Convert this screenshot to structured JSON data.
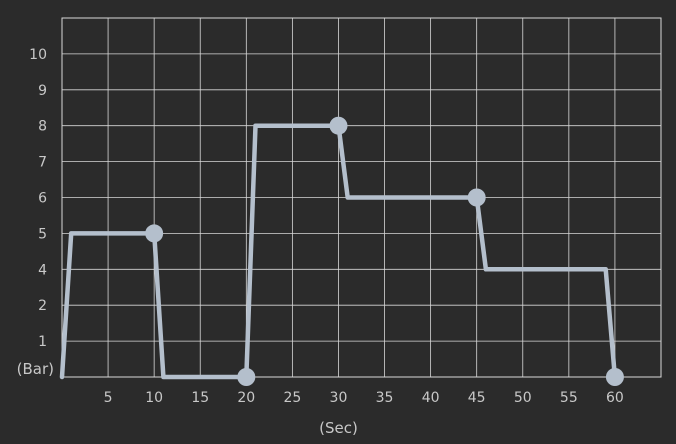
{
  "chart_data": {
    "type": "line",
    "title": "",
    "xlabel": "(Sec)",
    "ylabel": "(Bar)",
    "x_ticks": [
      "5",
      "10",
      "15",
      "20",
      "25",
      "30",
      "35",
      "40",
      "45",
      "50",
      "55",
      "60"
    ],
    "y_ticks": [
      "1",
      "2",
      "4",
      "5",
      "6",
      "7",
      "8",
      "9",
      "10"
    ],
    "y_ticks_note": "tick label sequence as printed (0 position shows '(Bar)')",
    "xlim": [
      0,
      65
    ],
    "ylim": [
      0,
      10
    ],
    "grid": true,
    "colors": {
      "background": "#2b2b2b",
      "grid": "#d8d8d8",
      "line": "#b4bfcc",
      "text": "#c8c8c8"
    },
    "series": [
      {
        "points": [
          {
            "x": 0,
            "y": 0
          },
          {
            "x": 1,
            "y": 4
          },
          {
            "x": 10,
            "y": 4
          },
          {
            "x": 11,
            "y": 0
          },
          {
            "x": 20,
            "y": 0
          },
          {
            "x": 21,
            "y": 7
          },
          {
            "x": 30,
            "y": 7
          },
          {
            "x": 31,
            "y": 5
          },
          {
            "x": 45,
            "y": 5
          },
          {
            "x": 46,
            "y": 3
          },
          {
            "x": 59,
            "y": 3
          },
          {
            "x": 60,
            "y": 0
          }
        ],
        "markers": [
          {
            "x": 10,
            "y": 4
          },
          {
            "x": 20,
            "y": 0
          },
          {
            "x": 30,
            "y": 7
          },
          {
            "x": 45,
            "y": 5
          },
          {
            "x": 60,
            "y": 0
          }
        ]
      }
    ]
  }
}
